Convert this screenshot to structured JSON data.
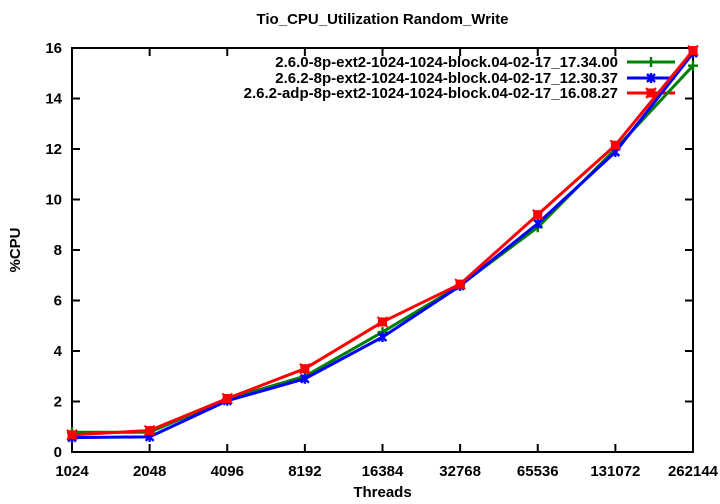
{
  "page": {
    "background": "#ffffff"
  },
  "chart_data": {
    "type": "line",
    "title": "Tio_CPU_Utilization Random_Write",
    "xlabel": "Threads",
    "ylabel": "%CPU",
    "x_scale": "log2-categories",
    "grid": false,
    "legend_position": "top-right-inside",
    "categories": [
      "1024",
      "2048",
      "4096",
      "8192",
      "16384",
      "32768",
      "65536",
      "131072",
      "262144"
    ],
    "y_ticks": [
      0,
      2,
      4,
      6,
      8,
      10,
      12,
      14,
      16
    ],
    "y_tick_labels": [
      "0",
      "2",
      "4",
      "6",
      "8",
      "10",
      "12",
      "14",
      "16"
    ],
    "ylim": [
      0,
      16
    ],
    "axis_color": "#000000",
    "series": [
      {
        "name": "2.6.0-8p-ext2-1024-1024-block.04-02-17_17.34.00",
        "color": "#008000",
        "marker": "plus",
        "values": [
          0.78,
          0.78,
          2.1,
          3.0,
          4.75,
          6.6,
          8.9,
          12.0,
          15.3
        ]
      },
      {
        "name": "2.6.2-8p-ext2-1024-1024-block.04-02-17_12.30.37",
        "color": "#0000ff",
        "marker": "asterisk",
        "values": [
          0.57,
          0.6,
          2.03,
          2.9,
          4.55,
          6.58,
          9.05,
          11.88,
          15.8
        ]
      },
      {
        "name": "2.6.2-adp-8p-ext2-1024-1024-block.04-02-17_16.08.27",
        "color": "#ff0000",
        "marker": "filled-square",
        "values": [
          0.68,
          0.85,
          2.12,
          3.3,
          5.15,
          6.65,
          9.4,
          12.15,
          15.9
        ]
      }
    ]
  }
}
